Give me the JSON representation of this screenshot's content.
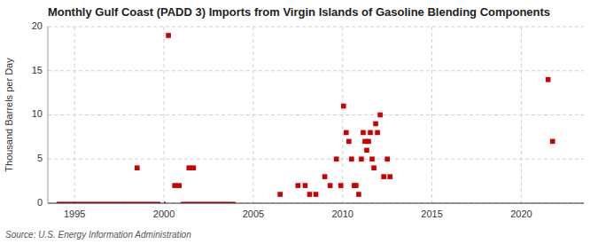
{
  "chart_data": {
    "type": "scatter",
    "title": "Monthly Gulf Coast (PADD 3) Imports from Virgin Islands of Gasoline Blending Components",
    "ylabel": "Thousand Barrels per Day",
    "source": "Source: U.S. Energy Information Administration",
    "xlim": [
      1993.5,
      2023.5
    ],
    "ylim": [
      0,
      20
    ],
    "xticks": [
      1995,
      2000,
      2005,
      2010,
      2015,
      2020
    ],
    "yticks": [
      0,
      5,
      10,
      15,
      20
    ],
    "grid": true,
    "series": [
      {
        "type": "scatter",
        "marker": "square",
        "color": "#cc0000",
        "x": [
          1998.5,
          2000.25,
          2000.6,
          2000.85,
          2001.4,
          2001.65,
          2006.5,
          2007.5,
          2007.9,
          2008.15,
          2008.5,
          2009.0,
          2009.3,
          2009.65,
          2009.9,
          2010.05,
          2010.2,
          2010.35,
          2010.5,
          2010.65,
          2010.75,
          2010.9,
          2011.05,
          2011.15,
          2011.25,
          2011.35,
          2011.45,
          2011.55,
          2011.65,
          2011.75,
          2011.85,
          2011.95,
          2012.1,
          2012.3,
          2012.5,
          2012.65,
          2021.5,
          2021.75
        ],
        "values": [
          4.0,
          19.0,
          2.0,
          2.0,
          4.0,
          4.0,
          1.0,
          2.0,
          2.0,
          1.0,
          1.0,
          3.0,
          2.0,
          5.0,
          2.0,
          11.0,
          8.0,
          7.0,
          5.0,
          2.0,
          2.0,
          1.0,
          5.0,
          8.0,
          7.0,
          6.0,
          7.0,
          8.0,
          5.0,
          4.0,
          9.0,
          8.0,
          10.0,
          3.0,
          5.0,
          3.0,
          14.0,
          7.0
        ]
      },
      {
        "type": "line",
        "line_style": "solid",
        "color": "#8b0000",
        "x": [
          1994.0,
          1999.8
        ],
        "values": [
          0,
          0
        ]
      },
      {
        "type": "line",
        "line_style": "solid",
        "color": "#8b0000",
        "x": [
          2000.0,
          2000.1
        ],
        "values": [
          0,
          0
        ]
      },
      {
        "type": "line",
        "line_style": "solid",
        "color": "#8b0000",
        "x": [
          2000.95,
          2004.0
        ],
        "values": [
          0,
          0
        ]
      }
    ]
  }
}
